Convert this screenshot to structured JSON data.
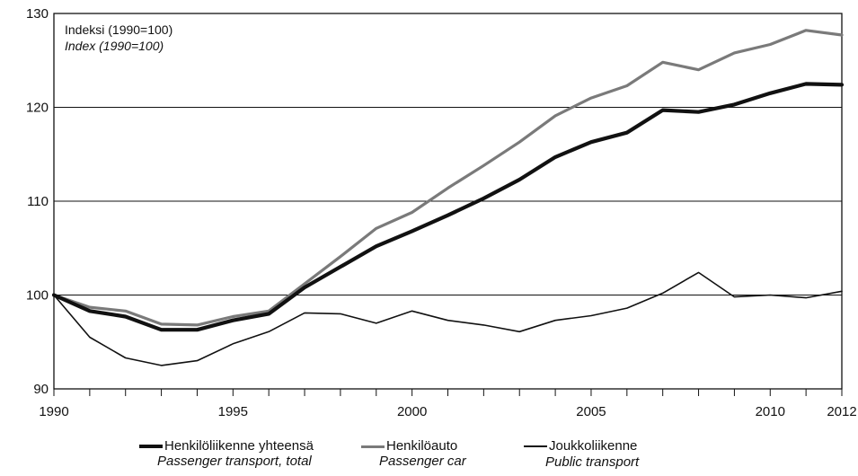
{
  "chart_data": {
    "type": "line",
    "title": "",
    "note": {
      "line1": "Indeksi (1990=100)",
      "line2": "Index (1990=100)"
    },
    "xlabel": "",
    "ylabel": "",
    "xlim": [
      1990,
      2012
    ],
    "ylim": [
      90,
      130
    ],
    "x_ticks": [
      1990,
      1995,
      2000,
      2005,
      2010,
      2012
    ],
    "y_ticks": [
      90,
      100,
      110,
      120,
      130
    ],
    "grid": "horizontal",
    "legend_position": "bottom",
    "x": [
      1990,
      1991,
      1992,
      1993,
      1994,
      1995,
      1996,
      1997,
      1998,
      1999,
      2000,
      2001,
      2002,
      2003,
      2004,
      2005,
      2006,
      2007,
      2008,
      2009,
      2010,
      2011,
      2012
    ],
    "series": [
      {
        "name": "Henkilöliikenne yhteensä",
        "name_en": "Passenger transport, total",
        "color": "#111111",
        "values": [
          100,
          98.3,
          97.7,
          96.3,
          96.3,
          97.3,
          98.0,
          100.8,
          103.0,
          105.2,
          106.8,
          108.5,
          110.3,
          112.3,
          114.7,
          116.3,
          117.3,
          119.7,
          119.5,
          120.3,
          121.5,
          122.5,
          122.4
        ]
      },
      {
        "name": "Henkilöauto",
        "name_en": "Passenger car",
        "color": "#7a7a7a",
        "values": [
          100,
          98.7,
          98.3,
          96.9,
          96.8,
          97.7,
          98.3,
          101.2,
          104.1,
          107.1,
          108.8,
          111.4,
          113.8,
          116.3,
          119.1,
          121.0,
          122.3,
          124.8,
          124.0,
          125.8,
          126.7,
          128.2,
          127.7
        ]
      },
      {
        "name": "Joukkoliikenne",
        "name_en": "Public transport",
        "color": "#111111",
        "values": [
          100,
          95.5,
          93.3,
          92.5,
          93.0,
          94.8,
          96.1,
          98.1,
          98.0,
          97.0,
          98.3,
          97.3,
          96.8,
          96.1,
          97.3,
          97.8,
          98.6,
          100.2,
          102.4,
          99.8,
          100.0,
          99.7,
          100.4
        ]
      }
    ]
  }
}
